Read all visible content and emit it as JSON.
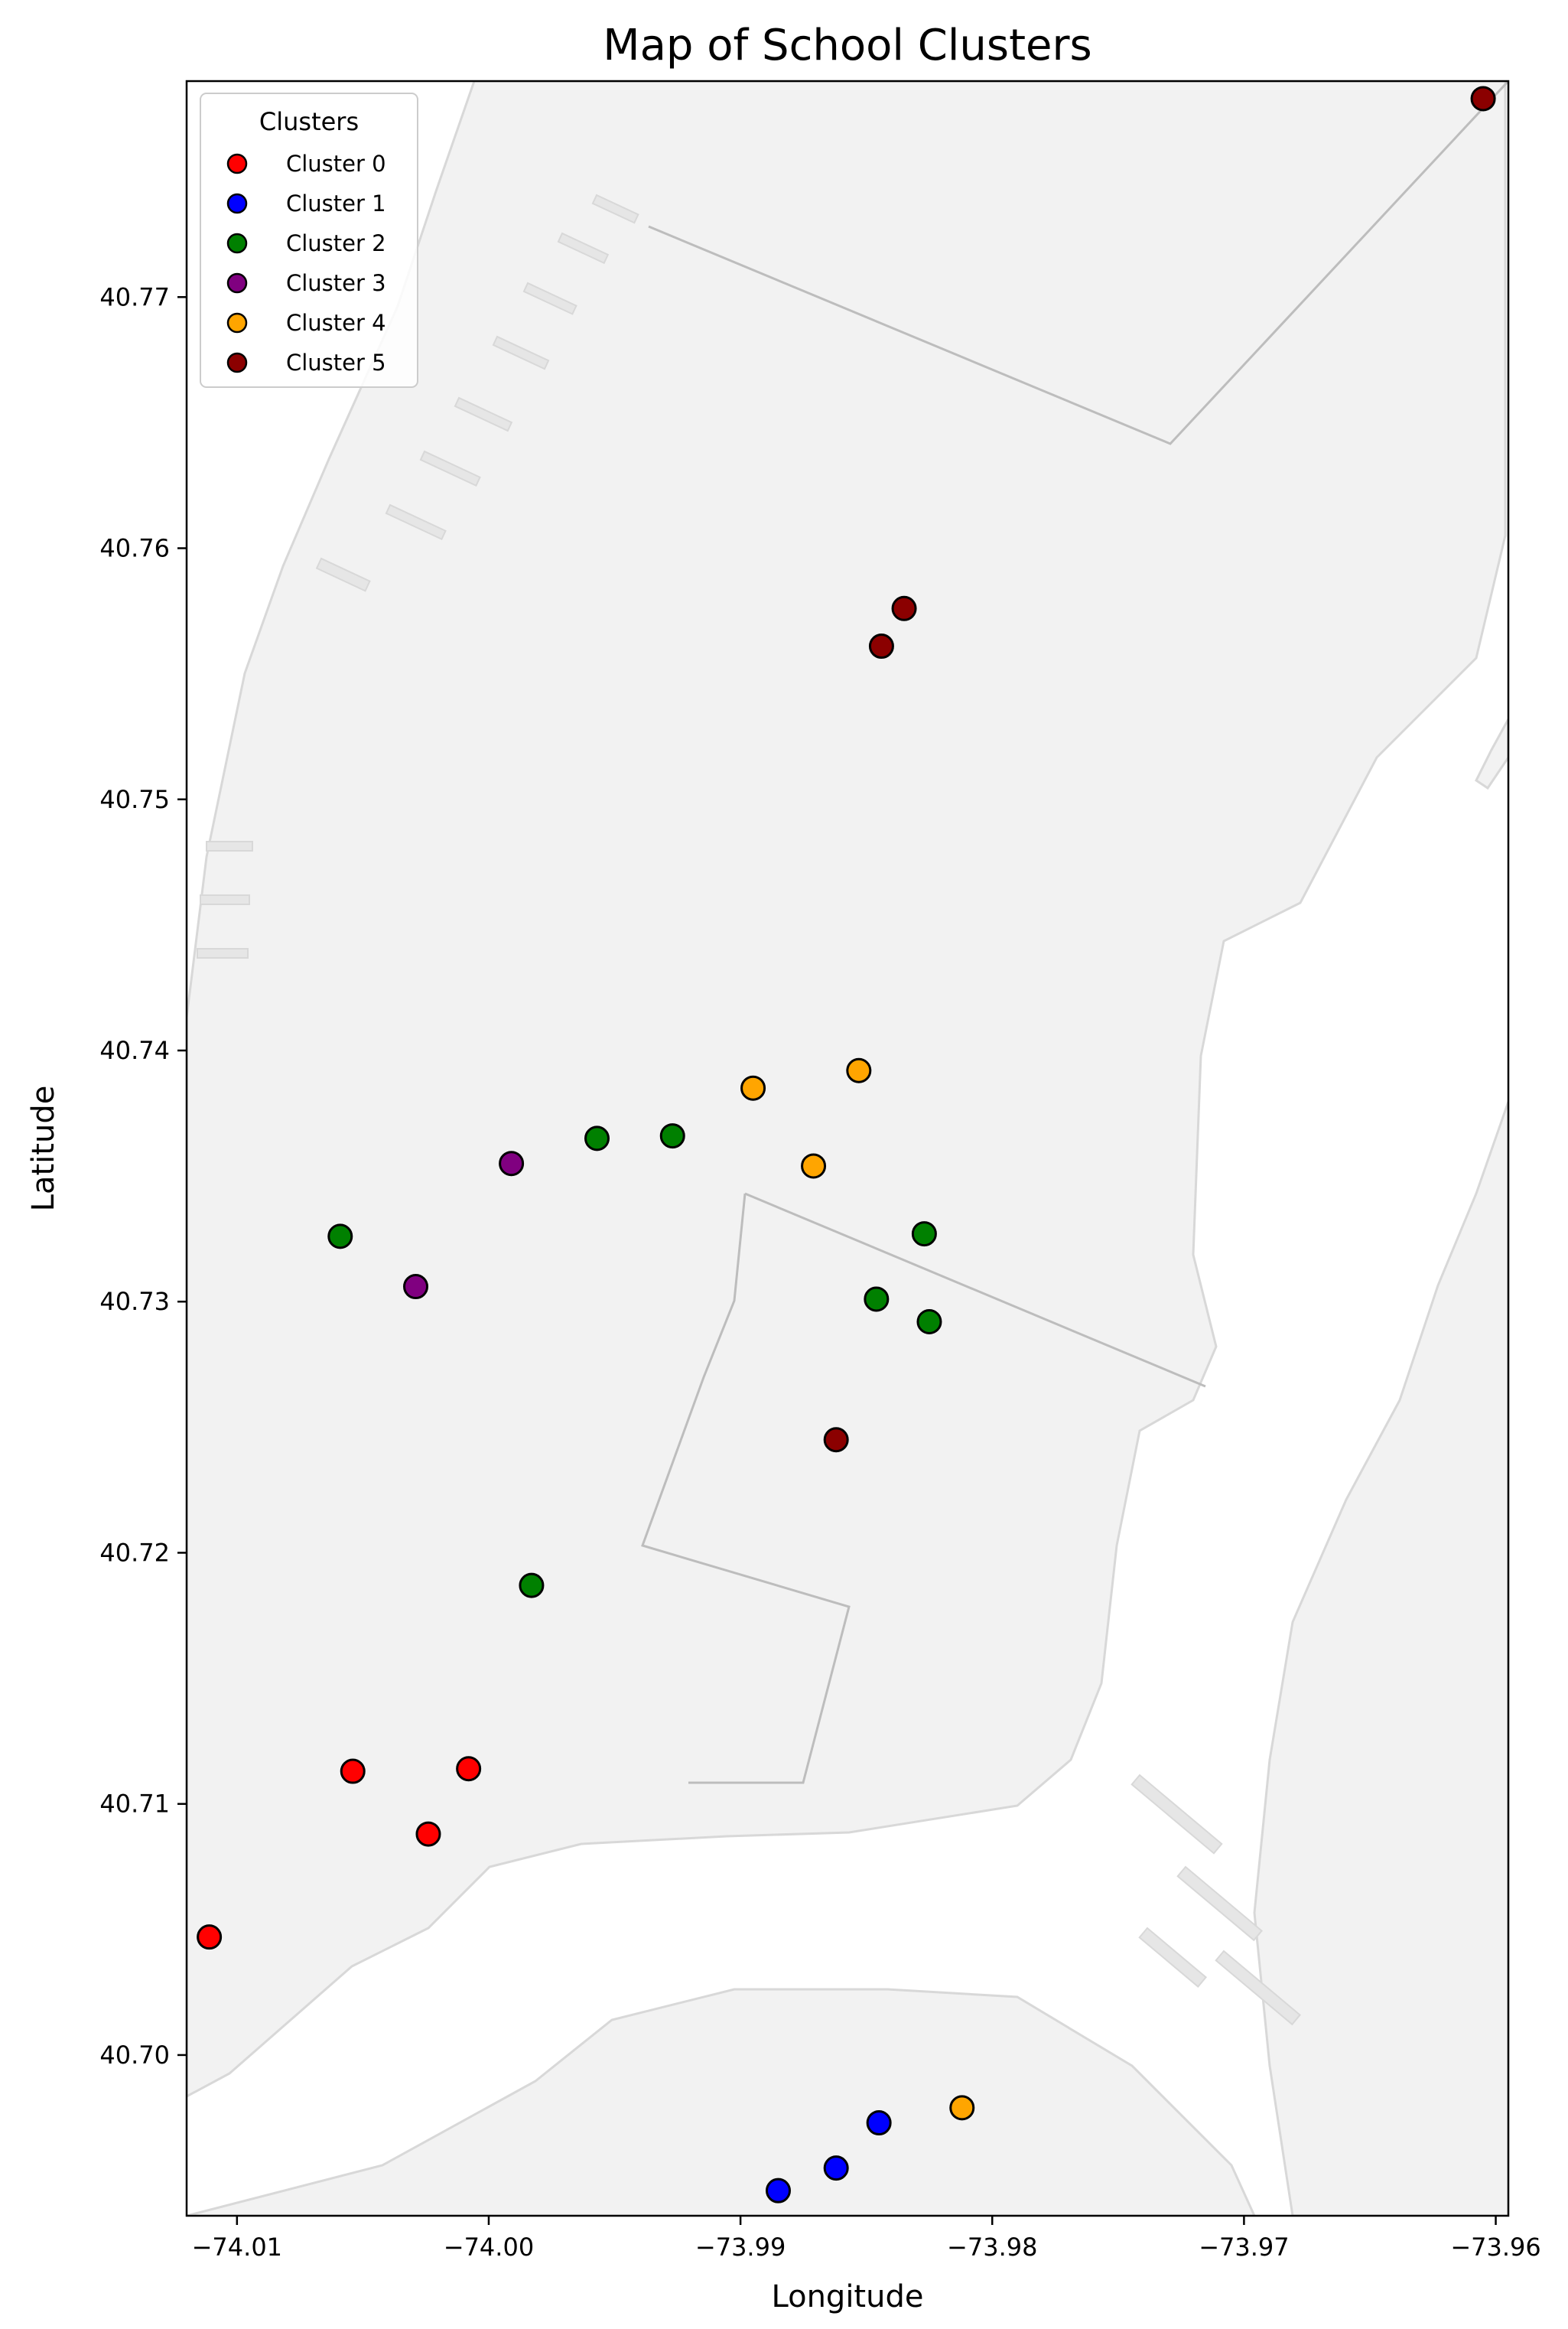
{
  "chart_data": {
    "type": "scatter",
    "title": "Map of School Clusters",
    "xlabel": "Longitude",
    "ylabel": "Latitude",
    "xlim": [
      -74.012,
      -73.9595
    ],
    "ylim": [
      40.6936,
      40.7786
    ],
    "xticks": [
      -74.01,
      -74.0,
      -73.99,
      -73.98,
      -73.97,
      -73.96
    ],
    "xtick_labels": [
      "−74.01",
      "−74.00",
      "−73.99",
      "−73.98",
      "−73.97",
      "−73.96"
    ],
    "yticks": [
      40.7,
      40.71,
      40.72,
      40.73,
      40.74,
      40.75,
      40.76,
      40.77
    ],
    "ytick_labels": [
      "40.70",
      "40.71",
      "40.72",
      "40.73",
      "40.74",
      "40.75",
      "40.76",
      "40.77"
    ],
    "grid": false,
    "legend": {
      "title": "Clusters",
      "placement": "top-left"
    },
    "series": [
      {
        "name": "Cluster 0",
        "color": "#ff0000",
        "points": [
          [
            -74.0111,
            40.7047
          ],
          [
            -74.0054,
            40.7113
          ],
          [
            -74.0024,
            40.7088
          ],
          [
            -74.0008,
            40.7114
          ]
        ]
      },
      {
        "name": "Cluster 1",
        "color": "#0000ff",
        "points": [
          [
            -73.9885,
            40.6946
          ],
          [
            -73.9862,
            40.6955
          ],
          [
            -73.9845,
            40.6973
          ]
        ]
      },
      {
        "name": "Cluster 2",
        "color": "#008000",
        "points": [
          [
            -74.0059,
            40.7326
          ],
          [
            -73.9983,
            40.7187
          ],
          [
            -73.9957,
            40.7365
          ],
          [
            -73.9927,
            40.7366
          ],
          [
            -73.9846,
            40.7301
          ],
          [
            -73.9827,
            40.7327
          ],
          [
            -73.9825,
            40.7292
          ]
        ]
      },
      {
        "name": "Cluster 3",
        "color": "#800080",
        "points": [
          [
            -74.0029,
            40.7306
          ],
          [
            -73.9991,
            40.7355
          ]
        ]
      },
      {
        "name": "Cluster 4",
        "color": "#ffa500",
        "points": [
          [
            -73.9895,
            40.7385
          ],
          [
            -73.9871,
            40.7354
          ],
          [
            -73.9853,
            40.7392
          ],
          [
            -73.9812,
            40.6979
          ]
        ]
      },
      {
        "name": "Cluster 5",
        "color": "#8b0000",
        "points": [
          [
            -73.9862,
            40.7245
          ],
          [
            -73.9844,
            40.7561
          ],
          [
            -73.9835,
            40.7576
          ],
          [
            -73.9605,
            40.7779
          ]
        ]
      }
    ]
  }
}
